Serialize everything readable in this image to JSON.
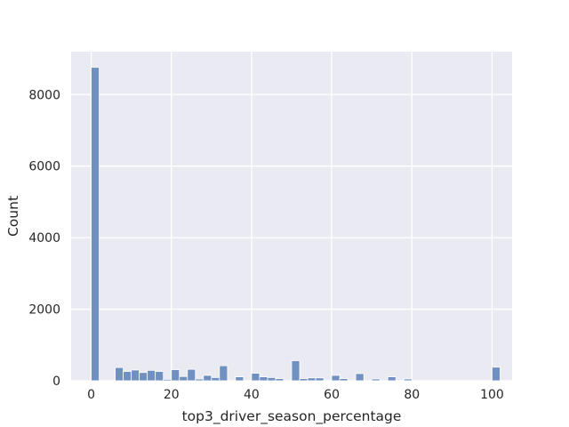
{
  "chart_data": {
    "type": "bar",
    "subtype": "histogram",
    "title": "",
    "xlabel": "top3_driver_season_percentage",
    "ylabel": "Count",
    "xlim": [
      -5,
      105
    ],
    "ylim": [
      0,
      9200
    ],
    "xticks": [
      0,
      20,
      40,
      60,
      80,
      100
    ],
    "yticks": [
      0,
      2000,
      4000,
      6000,
      8000
    ],
    "grid": true,
    "legend": "none",
    "bin_width": 2,
    "bin_start": 0,
    "values": [
      8760,
      0,
      0,
      370,
      260,
      300,
      230,
      290,
      260,
      40,
      310,
      120,
      320,
      50,
      150,
      90,
      420,
      0,
      110,
      0,
      210,
      110,
      90,
      60,
      0,
      560,
      60,
      80,
      80,
      0,
      150,
      60,
      0,
      200,
      0,
      50,
      0,
      110,
      0,
      50,
      0,
      0,
      0,
      0,
      0,
      0,
      0,
      0,
      0,
      0,
      380
    ],
    "colors": {
      "bar": "#7090c2",
      "bar_edge": "#ffffff",
      "plot_background": "#eaeaf2",
      "grid": "#ffffff"
    }
  }
}
